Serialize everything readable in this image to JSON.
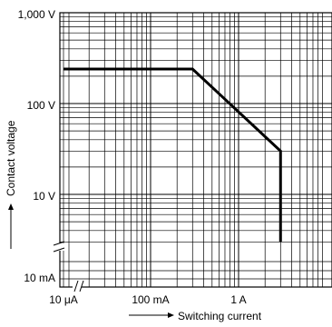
{
  "chart_data": {
    "type": "line",
    "x_scale": "log",
    "y_scale": "log",
    "xlabel": "Switching current",
    "ylabel": "Contact voltage",
    "x_tick_labels": [
      "10 μA",
      "100 mA",
      "1 A"
    ],
    "y_tick_labels": [
      "1,000 V",
      "100 V",
      "10 V",
      "10 mA"
    ],
    "grid": true,
    "axis_breaks": [
      "x",
      "y"
    ],
    "series": [
      {
        "points": [
          {
            "x": "10 μA",
            "y": 240
          },
          {
            "x": 0.3,
            "y": 240
          },
          {
            "x": 3,
            "y": 30
          },
          {
            "x": 3,
            "y": 3
          }
        ]
      }
    ]
  }
}
